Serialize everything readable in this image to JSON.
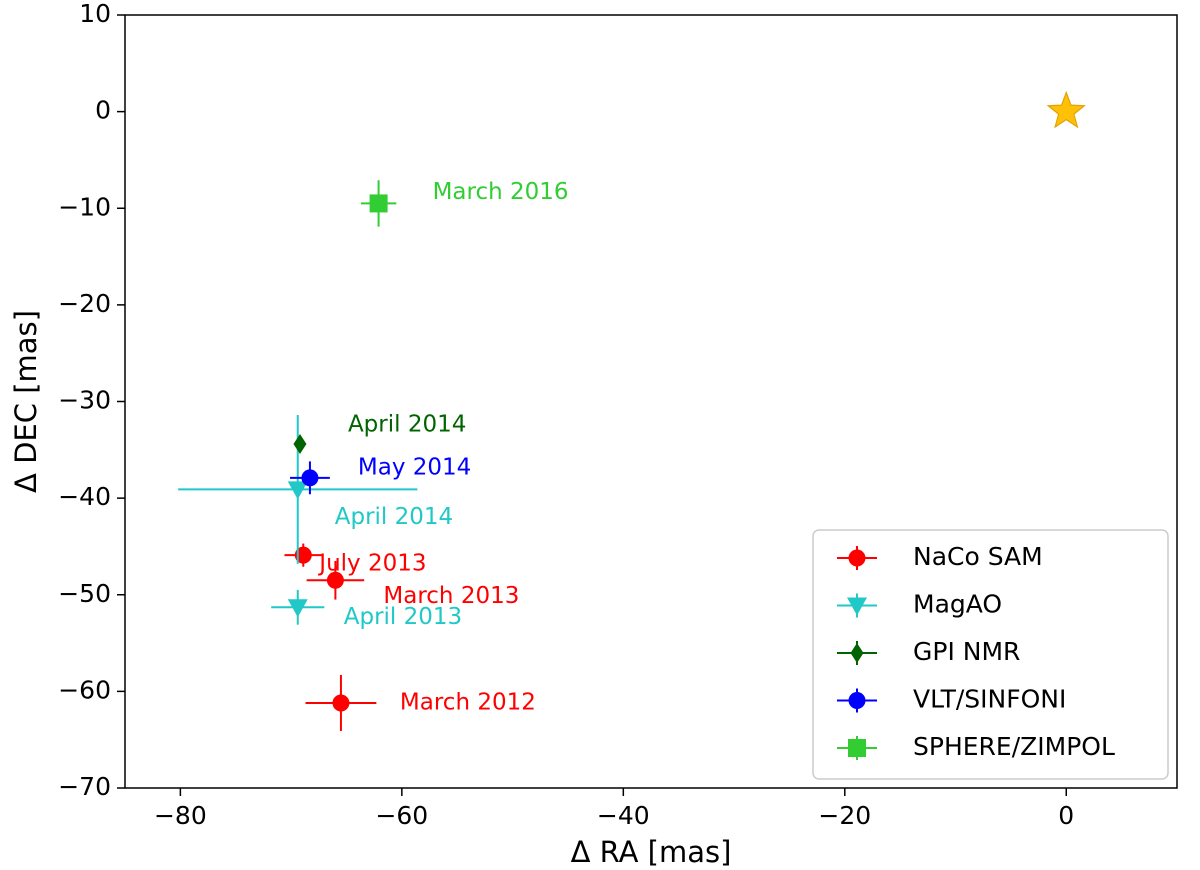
{
  "chart_data": {
    "type": "scatter",
    "xlabel": "Δ RA [mas]",
    "ylabel": "Δ DEC [mas]",
    "xlim": [
      -85,
      10
    ],
    "ylim": [
      -70,
      10
    ],
    "xticks": [
      -80,
      -60,
      -40,
      -20,
      0
    ],
    "yticks": [
      -70,
      -60,
      -50,
      -40,
      -30,
      -20,
      -10,
      0,
      10
    ],
    "xtick_labels": [
      "−80",
      "−60",
      "−40",
      "−20",
      "0"
    ],
    "ytick_labels": [
      "−70",
      "−60",
      "−50",
      "−40",
      "−30",
      "−20",
      "−10",
      "0",
      "10"
    ],
    "grid": false,
    "legend_position": "lower-right",
    "star": {
      "x": 0,
      "y": 0,
      "color": "#ffc107",
      "icon": "star-icon"
    },
    "series": [
      {
        "name": "NaCo SAM",
        "marker": "circle",
        "color": "#ff0000",
        "points": [
          {
            "x": -68.9,
            "y": -45.9,
            "xerr": 1.7,
            "yerr": 1.2,
            "label": "July 2013"
          },
          {
            "x": -66.0,
            "y": -48.5,
            "xerr": 2.6,
            "yerr": 2.0,
            "label": "March 2013"
          },
          {
            "x": -65.5,
            "y": -61.2,
            "xerr": 3.2,
            "yerr": 2.9,
            "label": "March 2012"
          }
        ]
      },
      {
        "name": "MagAO",
        "marker": "triangle-down",
        "color": "#20c8c8",
        "points": [
          {
            "x": -69.4,
            "y": -39.1,
            "xerr": 10.8,
            "yerr": 7.7,
            "label": "April 2014"
          },
          {
            "x": -69.4,
            "y": -51.3,
            "xerr": 2.4,
            "yerr": 1.8,
            "label": "April 2013"
          }
        ]
      },
      {
        "name": "GPI NMR",
        "marker": "diamond",
        "color": "#006400",
        "points": [
          {
            "x": -69.2,
            "y": -34.4,
            "xerr": 0.5,
            "yerr": 0.6,
            "label": "April 2014"
          }
        ]
      },
      {
        "name": "VLT/SINFONI",
        "marker": "circle",
        "color": "#0000ff",
        "points": [
          {
            "x": -68.3,
            "y": -37.9,
            "xerr": 1.8,
            "yerr": 1.7,
            "label": "May 2014"
          }
        ]
      },
      {
        "name": "SPHERE/ZIMPOL",
        "marker": "square",
        "color": "#32cd32",
        "points": [
          {
            "x": -62.1,
            "y": -9.5,
            "xerr": 1.6,
            "yerr": 2.4,
            "label": "March 2016"
          }
        ]
      }
    ]
  }
}
